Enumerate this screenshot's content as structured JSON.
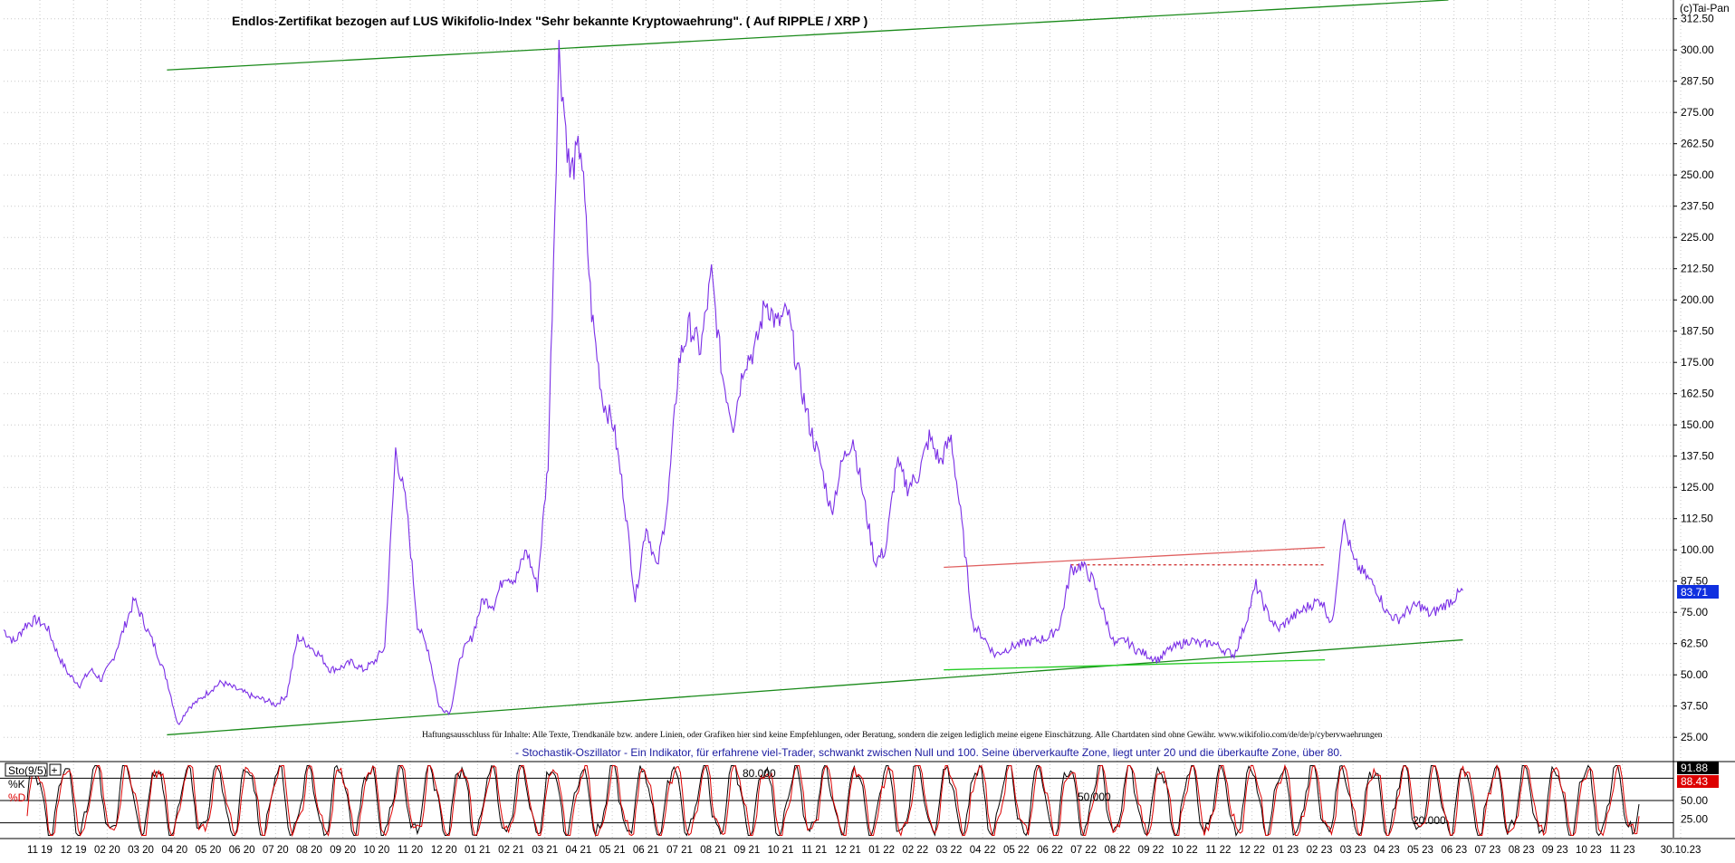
{
  "chart_data": [
    {
      "type": "line",
      "title": "Endlos-Zertifikat bezogen auf LUS Wikifolio-Index \"Sehr bekannte Kryptowaehrung\". ( Auf RIPPLE / XRP )",
      "copyright": "(c)Tai-Pan",
      "disclaimer": "Haftungsausschluss für Inhalte: Alle Texte, Trendkanäle bzw. andere Linien, oder Grafiken hier sind keine Empfehlungen, oder Beratung, sondern die zeigen lediglich meine eigene Einschätzung. Alle Chartdaten sind ohne Gewähr.  www.wikifolio.com/de/de/p/cybervwaehrungen",
      "ylim": [
        20,
        320
      ],
      "yticks": [
        "25.00",
        "37.50",
        "50.00",
        "62.50",
        "75.00",
        "87.50",
        "100.00",
        "112.50",
        "125.00",
        "137.50",
        "150.00",
        "162.50",
        "175.00",
        "187.50",
        "200.00",
        "212.50",
        "225.00",
        "237.50",
        "250.00",
        "262.50",
        "275.00",
        "287.50",
        "300.00",
        "312.50"
      ],
      "last_value": "83.71",
      "color_main": "#7a2ee6",
      "color_badge": "#1030e0",
      "grid": true,
      "series": [
        {
          "color": "#7a2ee6",
          "x": [
            0.0,
            0.03,
            0.06,
            0.09,
            0.12,
            0.15,
            0.18,
            0.21,
            0.24,
            0.27,
            0.3,
            0.33,
            0.36,
            0.39,
            0.42,
            0.45,
            0.48,
            0.51,
            0.54,
            0.57,
            0.6,
            0.63,
            0.66,
            0.69,
            0.72,
            0.75,
            0.78,
            0.81,
            0.84,
            0.87,
            0.9,
            0.93,
            0.96,
            0.99,
            1.02,
            1.05,
            1.08,
            1.11,
            1.14,
            1.17,
            1.2,
            1.23,
            1.26,
            1.29,
            1.32,
            1.35,
            1.38,
            1.41,
            1.44,
            1.47,
            1.5,
            1.53,
            1.56,
            1.59,
            1.62,
            1.65,
            1.68,
            1.71,
            1.74,
            1.77,
            1.8,
            1.83,
            1.86,
            1.89,
            1.92,
            1.95,
            1.98,
            2.01,
            2.04,
            2.07,
            2.1,
            2.13,
            2.16,
            2.19,
            2.22,
            2.25,
            2.28,
            2.31,
            2.34,
            2.37,
            2.4,
            2.43,
            2.46,
            2.49,
            2.52,
            2.55,
            2.58,
            2.61,
            2.64,
            2.67,
            2.7,
            2.73,
            2.76,
            2.79,
            2.82,
            2.85,
            2.88,
            2.91,
            2.94,
            2.97,
            3.0,
            3.03,
            3.06,
            3.09,
            3.12,
            3.15,
            3.18,
            3.21,
            3.24,
            3.27,
            3.3,
            3.33,
            3.36,
            3.39,
            3.42,
            3.45,
            3.48,
            3.51,
            3.54,
            3.57,
            3.6,
            3.63,
            3.66,
            3.69,
            3.72,
            3.75,
            3.78,
            3.81,
            3.84,
            3.87,
            3.9,
            3.93,
            3.96,
            3.99,
            4.02
          ],
          "values": [
            68,
            63,
            70,
            72,
            69,
            58,
            50,
            46,
            52,
            48,
            56,
            68,
            80,
            70,
            60,
            48,
            30,
            37,
            40,
            44,
            47,
            45,
            43,
            41,
            40,
            38,
            42,
            65,
            62,
            58,
            52,
            53,
            55,
            52,
            55,
            61,
            140,
            117,
            70,
            60,
            37,
            35,
            58,
            65,
            80,
            78,
            90,
            88,
            100,
            85,
            135,
            300,
            250,
            262,
            195,
            160,
            150,
            120,
            80,
            110,
            92,
            120,
            175,
            190,
            180,
            210,
            170,
            150,
            175,
            180,
            200,
            190,
            195,
            170,
            150,
            135,
            115,
            135,
            145,
            120,
            95,
            100,
            135,
            125,
            130,
            145,
            135,
            145,
            110,
            70,
            65,
            58,
            60,
            62,
            63,
            64,
            65,
            70,
            92,
            94,
            88,
            75,
            62,
            64,
            60,
            58,
            56,
            60,
            62,
            64,
            62,
            63,
            60,
            58,
            70,
            86,
            75,
            68,
            72,
            75,
            78,
            80,
            70,
            112,
            95,
            90,
            85,
            75,
            72,
            76,
            78,
            74,
            77,
            80,
            83.71
          ]
        }
      ],
      "trendlines": [
        {
          "color": "#1a8a1a",
          "from": [
            0.45,
            292
          ],
          "to": [
            3.98,
            320
          ]
        },
        {
          "color": "#1a8a1a",
          "from": [
            0.45,
            26
          ],
          "to": [
            4.02,
            64
          ]
        },
        {
          "color": "#22cc22",
          "from": [
            2.59,
            52
          ],
          "to": [
            3.64,
            56
          ]
        },
        {
          "color": "#e06060",
          "from": [
            2.59,
            93
          ],
          "to": [
            3.64,
            101
          ]
        },
        {
          "color": "#cc2222",
          "dashed": true,
          "from": [
            2.94,
            94
          ],
          "to": [
            3.64,
            94
          ]
        }
      ]
    },
    {
      "type": "line",
      "indicator_label": "Sto(9/5)",
      "k_label": "%K",
      "d_label": "%D",
      "ylim": [
        0,
        100
      ],
      "yticks": [
        "25.00",
        "50.00",
        "75.00"
      ],
      "level_labels": [
        "80.000",
        "50.000",
        "20.000"
      ],
      "last_k": "91.88",
      "last_d": "88.43",
      "note": "- Stochastik-Oszillator - Ein Indikator, für erfahrene viel-Trader, schwankt zwischen Null und 100. Seine überverkaufte Zone, liegt unter 20 und die überkaufte Zone, über 80.",
      "series": [
        {
          "name": "%K",
          "color": "#000000",
          "cycles": 53,
          "phase": 0.0
        },
        {
          "name": "%D",
          "color": "#dd0000",
          "cycles": 53,
          "phase": 0.35
        }
      ]
    }
  ],
  "x_axis": {
    "labels": [
      "11 19",
      "12 19",
      "02 20",
      "03 20",
      "04 20",
      "05 20",
      "06 20",
      "07 20",
      "08 20",
      "09 20",
      "10 20",
      "11 20",
      "12 20",
      "01 21",
      "02 21",
      "03 21",
      "04 21",
      "05 21",
      "06 21",
      "07 21",
      "08 21",
      "09 21",
      "10 21",
      "11 21",
      "12 21",
      "01 22",
      "02 22",
      "03 22",
      "04 22",
      "05 22",
      "06 22",
      "07 22",
      "08 22",
      "09 22",
      "10 22",
      "11 22",
      "12 22",
      "01 23",
      "02 23",
      "03 23",
      "04 23",
      "05 23",
      "06 23",
      "07 23",
      "08 23",
      "09 23",
      "10 23",
      "11 23",
      "30.10.23"
    ]
  }
}
